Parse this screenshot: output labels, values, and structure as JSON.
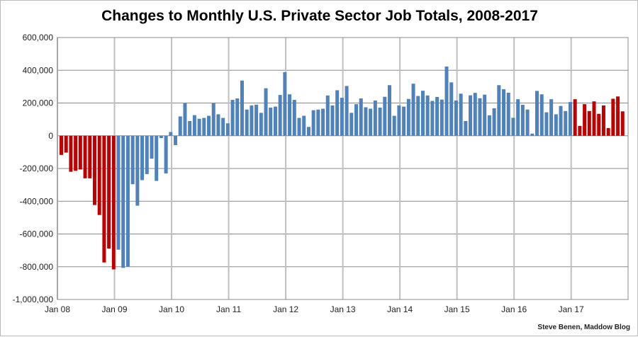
{
  "chart_data": {
    "type": "bar",
    "title": "Changes to Monthly U.S. Private Sector Job Totals, 2008-2017",
    "xlabel": "",
    "ylabel": "",
    "ylim": [
      -1000000,
      600000
    ],
    "y_ticks": [
      600000,
      400000,
      200000,
      0,
      -200000,
      -400000,
      -600000,
      -800000,
      -1000000
    ],
    "y_tick_labels": [
      "600,000",
      "400,000",
      "200,000",
      "0",
      "-200,000",
      "-400,000",
      "-600,000",
      "-800,000",
      "-1,000,000"
    ],
    "x_tick_labels": [
      "Jan 08",
      "Jan 09",
      "Jan 10",
      "Jan 11",
      "Jan 12",
      "Jan 13",
      "Jan 14",
      "Jan 15",
      "Jan 16",
      "Jan 17"
    ],
    "grid": true,
    "colors": {
      "highlight": "#c00000",
      "default": "#4f81bd"
    },
    "highlight_years": [
      "2008",
      "2017"
    ],
    "years": [
      {
        "year": "2008",
        "values": [
          -117000,
          -103000,
          -220000,
          -214000,
          -206000,
          -260000,
          -260000,
          -423000,
          -484000,
          -774000,
          -689000,
          -816000
        ]
      },
      {
        "year": "2009",
        "values": [
          -696000,
          -807000,
          -799000,
          -296000,
          -427000,
          -271000,
          -234000,
          -140000,
          -276000,
          -14000,
          -230000,
          23000
        ]
      },
      {
        "year": "2010",
        "values": [
          -57000,
          118000,
          199000,
          90000,
          126000,
          104000,
          109000,
          122000,
          199000,
          131000,
          109000,
          76000
        ]
      },
      {
        "year": "2011",
        "values": [
          219000,
          228000,
          337000,
          160000,
          185000,
          190000,
          140000,
          290000,
          172000,
          178000,
          249000,
          388000
        ]
      },
      {
        "year": "2012",
        "values": [
          253000,
          219000,
          109000,
          122000,
          54000,
          156000,
          160000,
          165000,
          246000,
          185000,
          278000,
          232000
        ]
      },
      {
        "year": "2013",
        "values": [
          304000,
          140000,
          193000,
          228000,
          174000,
          165000,
          215000,
          172000,
          238000,
          309000,
          122000,
          185000
        ]
      },
      {
        "year": "2014",
        "values": [
          178000,
          225000,
          318000,
          243000,
          275000,
          246000,
          213000,
          237000,
          221000,
          423000,
          326000,
          215000
        ]
      },
      {
        "year": "2015",
        "values": [
          257000,
          90000,
          247000,
          262000,
          229000,
          251000,
          125000,
          168000,
          309000,
          284000,
          263000,
          110000
        ]
      },
      {
        "year": "2016",
        "values": [
          223000,
          189000,
          160000,
          13000,
          274000,
          253000,
          143000,
          223000,
          131000,
          182000,
          151000,
          206000
        ]
      },
      {
        "year": "2017",
        "values": [
          223000,
          60000,
          193000,
          151000,
          210000,
          134000,
          185000,
          47000,
          226000,
          240000,
          149000
        ]
      }
    ]
  },
  "credit": "Steve Benen, Maddow Blog"
}
